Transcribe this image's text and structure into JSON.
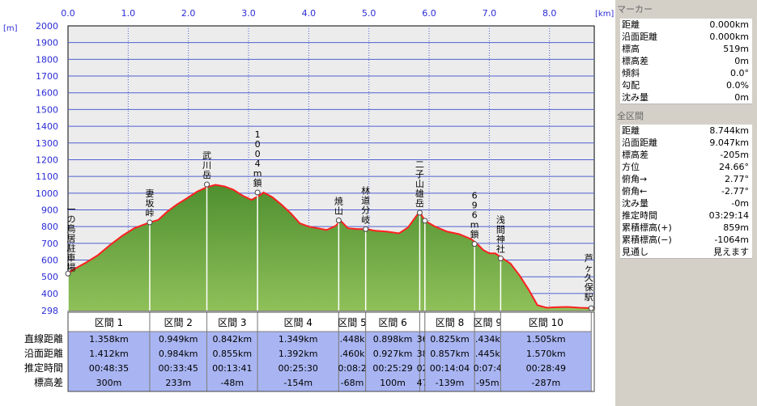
{
  "chart_data": {
    "type": "area",
    "x_unit": "[km]",
    "y_unit": "[m]",
    "xlim": [
      0,
      8.744
    ],
    "ylim": [
      298,
      2000
    ],
    "x_ticks": [
      "0.0",
      "1.0",
      "2.0",
      "3.0",
      "4.0",
      "5.0",
      "6.0",
      "7.0",
      "8.0"
    ],
    "y_ticks": [
      "2000",
      "1900",
      "1800",
      "1700",
      "1600",
      "1500",
      "1400",
      "1300",
      "1200",
      "1100",
      "1000",
      "900",
      "800",
      "700",
      "600",
      "500",
      "400",
      "298"
    ],
    "profile": [
      [
        0,
        519
      ],
      [
        0.1,
        545
      ],
      [
        0.3,
        585
      ],
      [
        0.5,
        630
      ],
      [
        0.7,
        690
      ],
      [
        0.9,
        745
      ],
      [
        1.1,
        790
      ],
      [
        1.36,
        825
      ],
      [
        1.5,
        840
      ],
      [
        1.65,
        890
      ],
      [
        1.8,
        930
      ],
      [
        2.0,
        975
      ],
      [
        2.15,
        1010
      ],
      [
        2.3,
        1035
      ],
      [
        2.45,
        1050
      ],
      [
        2.6,
        1040
      ],
      [
        2.75,
        1020
      ],
      [
        2.9,
        985
      ],
      [
        3.05,
        960
      ],
      [
        3.2,
        990
      ],
      [
        3.25,
        1004
      ],
      [
        3.4,
        975
      ],
      [
        3.55,
        930
      ],
      [
        3.7,
        880
      ],
      [
        3.85,
        820
      ],
      [
        4.0,
        800
      ],
      [
        4.15,
        790
      ],
      [
        4.3,
        780
      ],
      [
        4.45,
        805
      ],
      [
        4.53,
        835
      ],
      [
        4.65,
        790
      ],
      [
        4.8,
        785
      ],
      [
        4.97,
        785
      ],
      [
        5.1,
        775
      ],
      [
        5.3,
        770
      ],
      [
        5.5,
        760
      ],
      [
        5.65,
        795
      ],
      [
        5.8,
        870
      ],
      [
        5.85,
        883
      ],
      [
        5.93,
        835
      ],
      [
        6.1,
        800
      ],
      [
        6.3,
        770
      ],
      [
        6.5,
        755
      ],
      [
        6.7,
        725
      ],
      [
        6.8,
        696
      ],
      [
        6.9,
        660
      ],
      [
        7.0,
        640
      ],
      [
        7.1,
        640
      ],
      [
        7.22,
        610
      ],
      [
        7.35,
        580
      ],
      [
        7.5,
        510
      ],
      [
        7.65,
        425
      ],
      [
        7.8,
        330
      ],
      [
        7.95,
        315
      ],
      [
        8.1,
        318
      ],
      [
        8.3,
        320
      ],
      [
        8.5,
        315
      ],
      [
        8.744,
        312
      ]
    ],
    "markers": [
      {
        "x": 0.0,
        "y": 519,
        "label": "一の鳥居駐車場"
      },
      {
        "x": 1.358,
        "y": 825,
        "label": "妻坂峠"
      },
      {
        "x": 2.307,
        "y": 1052,
        "label": "武川岳"
      },
      {
        "x": 3.149,
        "y": 1004,
        "label": "1004m鎖"
      },
      {
        "x": 4.498,
        "y": 837,
        "label": "焼山"
      },
      {
        "x": 4.946,
        "y": 785,
        "label": "林道分岐"
      },
      {
        "x": 5.844,
        "y": 883,
        "label": "二子山雄岳"
      },
      {
        "x": 5.93,
        "y": 835,
        "label": ""
      },
      {
        "x": 6.755,
        "y": 696,
        "label": "696m鎖"
      },
      {
        "x": 7.189,
        "y": 610,
        "label": "浅間神社"
      },
      {
        "x": 8.694,
        "y": 312,
        "label": "芦ヶ久保駅"
      }
    ],
    "segments": [
      {
        "name": "区間 1",
        "dist": "1.358km",
        "surf": "1.412km",
        "time": "00:48:35",
        "diff": "300m"
      },
      {
        "name": "区間 2",
        "dist": "0.949km",
        "surf": "0.984km",
        "time": "00:33:45",
        "diff": "233m"
      },
      {
        "name": "区間 3",
        "dist": "0.842km",
        "surf": "0.855km",
        "time": "00:13:41",
        "diff": "-48m"
      },
      {
        "name": "区間 4",
        "dist": "1.349km",
        "surf": "1.392km",
        "time": "00:25:30",
        "diff": "-154m"
      },
      {
        "name": "区間 5",
        "dist": ".448k",
        "surf": ".460k",
        "time": "0:08:2",
        "diff": "-68m"
      },
      {
        "name": "区間 6",
        "dist": "0.898km",
        "surf": "0.927km",
        "time": "00:25:29",
        "diff": "100m"
      },
      {
        "name": "",
        "dist": "36",
        "surf": "38",
        "time": "02",
        "diff": "47"
      },
      {
        "name": "区間 8",
        "dist": "0.825km",
        "surf": "0.857km",
        "time": "00:14:04",
        "diff": "-139m"
      },
      {
        "name": "区間 9",
        "dist": ".434k",
        "surf": ".445k",
        "time": "0:07:4",
        "diff": "-95m"
      },
      {
        "name": "区間 10",
        "dist": "1.505km",
        "surf": "1.570km",
        "time": "00:28:49",
        "diff": "-287m"
      }
    ],
    "row_labels": [
      "直線距離",
      "沿面距離",
      "推定時間",
      "標高差"
    ]
  },
  "panel": {
    "marker_title": "マーカー",
    "marker_rows": [
      {
        "k": "距離",
        "v": "0.000km"
      },
      {
        "k": "沿面距離",
        "v": "0.000km"
      },
      {
        "k": "標高",
        "v": "519m"
      },
      {
        "k": "標高差",
        "v": "0m"
      },
      {
        "k": "傾斜",
        "v": "0.0°"
      },
      {
        "k": "勾配",
        "v": "0.0%"
      },
      {
        "k": "沈み量",
        "v": "0m"
      }
    ],
    "total_title": "全区間",
    "total_rows": [
      {
        "k": "距離",
        "v": "8.744km"
      },
      {
        "k": "沿面距離",
        "v": "9.047km"
      },
      {
        "k": "標高差",
        "v": "-205m"
      },
      {
        "k": "方位",
        "v": "24.66°"
      },
      {
        "k": "俯角→",
        "v": "2.77°"
      },
      {
        "k": "俯角←",
        "v": "-2.77°"
      },
      {
        "k": "沈み量",
        "v": "-0m"
      },
      {
        "k": "推定時間",
        "v": "03:29:14"
      },
      {
        "k": "累積標高(+)",
        "v": "859m"
      },
      {
        "k": "累積標高(−)",
        "v": "-1064m"
      },
      {
        "k": "見通し",
        "v": "見えます"
      }
    ]
  },
  "colors": {
    "fill_top": "#4f8f2f",
    "fill_bottom": "#8fc05a",
    "line": "#ff2020",
    "axis_text": "#2b2bd6",
    "grid": "#5060d0",
    "table_header": "#ffffff",
    "table_cell": "#a9b5f2",
    "panel_bg": "#d4d0c8"
  }
}
